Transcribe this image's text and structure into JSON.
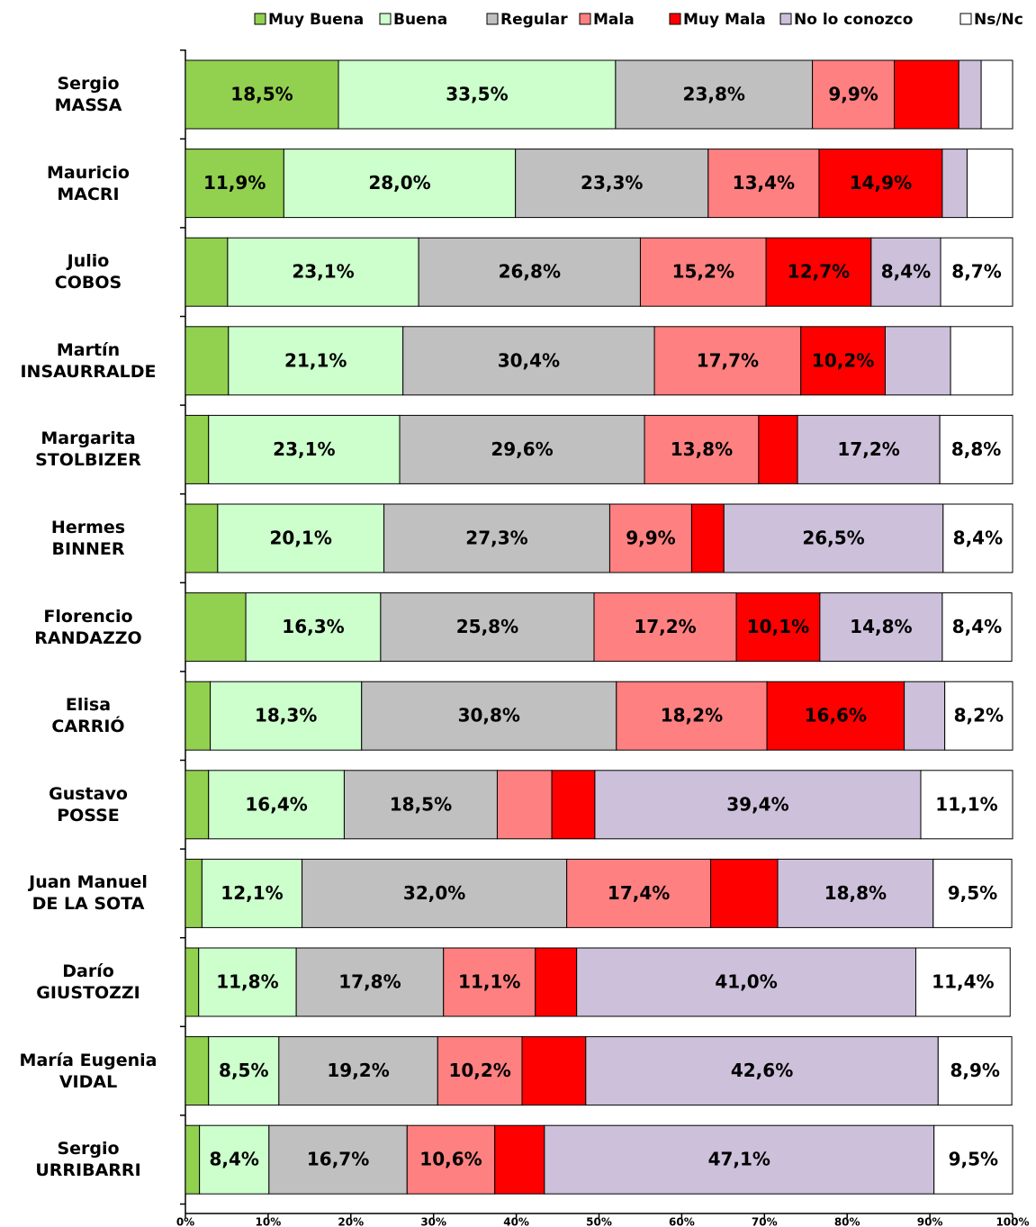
{
  "chart_data": {
    "type": "stacked-bar-horizontal",
    "categories": [
      "Sergio\nMASSA",
      "Mauricio\nMACRI",
      "Julio\nCOBOS",
      "Martín\nINSAURRALDE",
      "Margarita\nSTOLBIZER",
      "Hermes\nBINNER",
      "Florencio\nRANDAZZO",
      "Elisa\nCARRIÓ",
      "Gustavo\nPOSSE",
      "Juan Manuel\nDE LA SOTA",
      "Darío\nGIUSTOZZI",
      "María Eugenia\nVIDAL",
      "Sergio\nURRIBARRI"
    ],
    "series": [
      {
        "name": "Muy Buena",
        "color": "#92d050",
        "values": [
          18.5,
          11.9,
          5.1,
          5.2,
          2.8,
          3.9,
          7.3,
          3.0,
          2.8,
          2.0,
          1.6,
          2.8,
          1.7
        ],
        "value_labels": [
          "18,5%",
          "11,9%",
          null,
          null,
          null,
          null,
          null,
          null,
          null,
          null,
          null,
          null,
          null
        ]
      },
      {
        "name": "Buena",
        "color": "#ccffcc",
        "values": [
          33.5,
          28.0,
          23.1,
          21.1,
          23.1,
          20.1,
          16.3,
          18.3,
          16.4,
          12.1,
          11.8,
          8.5,
          8.4
        ],
        "value_labels": [
          "33,5%",
          "28,0%",
          "23,1%",
          "21,1%",
          "23,1%",
          "20,1%",
          "16,3%",
          "18,3%",
          "16,4%",
          "12,1%",
          "11,8%",
          "8,5%",
          "8,4%"
        ]
      },
      {
        "name": "Regular",
        "color": "#c0c0c0",
        "values": [
          23.8,
          23.3,
          26.8,
          30.4,
          29.6,
          27.3,
          25.8,
          30.8,
          18.5,
          32.0,
          17.8,
          19.2,
          16.7
        ],
        "value_labels": [
          "23,8%",
          "23,3%",
          "26,8%",
          "30,4%",
          "29,6%",
          "27,3%",
          "25,8%",
          "30,8%",
          "18,5%",
          "32,0%",
          "17,8%",
          "19,2%",
          "16,7%"
        ]
      },
      {
        "name": "Mala",
        "color": "#ff8080",
        "values": [
          9.9,
          13.4,
          15.2,
          17.7,
          13.8,
          9.9,
          17.2,
          18.2,
          6.6,
          17.4,
          11.1,
          10.2,
          10.6
        ],
        "value_labels": [
          "9,9%",
          "13,4%",
          "15,2%",
          "17,7%",
          "13,8%",
          "9,9%",
          "17,2%",
          "18,2%",
          null,
          "17,4%",
          "11,1%",
          "10,2%",
          "10,6%"
        ]
      },
      {
        "name": "Muy Mala",
        "color": "#ff0000",
        "values": [
          7.8,
          14.9,
          12.7,
          10.2,
          4.7,
          3.9,
          10.1,
          16.6,
          5.2,
          8.1,
          5.0,
          7.7,
          6.0
        ],
        "value_labels": [
          null,
          "14,9%",
          "12,7%",
          "10,2%",
          null,
          null,
          "10,1%",
          "16,6%",
          null,
          null,
          null,
          null,
          null
        ]
      },
      {
        "name": "No lo conozco",
        "color": "#ccc0da",
        "values": [
          2.7,
          3.0,
          8.4,
          7.9,
          17.2,
          26.5,
          14.8,
          4.9,
          39.4,
          18.8,
          41.0,
          42.6,
          47.1
        ],
        "value_labels": [
          null,
          null,
          "8,4%",
          null,
          "17,2%",
          "26,5%",
          "14,8%",
          null,
          "39,4%",
          "18,8%",
          "41,0%",
          "42,6%",
          "47,1%"
        ]
      },
      {
        "name": "Ns/Nc",
        "color": "#ffffff",
        "values": [
          3.8,
          5.5,
          8.7,
          7.5,
          8.8,
          8.4,
          8.4,
          8.2,
          11.1,
          9.5,
          11.4,
          8.9,
          9.5
        ],
        "value_labels": [
          null,
          null,
          "8,7%",
          null,
          "8,8%",
          "8,4%",
          "8,4%",
          "8,2%",
          "11,1%",
          "9,5%",
          "11,4%",
          "8,9%",
          "9,5%"
        ]
      }
    ],
    "xlim": [
      0,
      100
    ],
    "xticks": [
      {
        "value": 0,
        "label": "0%"
      },
      {
        "value": 10,
        "label": "10%"
      },
      {
        "value": 20,
        "label": "20%"
      },
      {
        "value": 30,
        "label": "30%"
      },
      {
        "value": 40,
        "label": "40%"
      },
      {
        "value": 50,
        "label": "50%"
      },
      {
        "value": 60,
        "label": "60%"
      },
      {
        "value": 70,
        "label": "70%"
      },
      {
        "value": 80,
        "label": "80%"
      },
      {
        "value": 90,
        "label": "90%"
      },
      {
        "value": 100,
        "label": "100%"
      }
    ],
    "legend": "top"
  }
}
